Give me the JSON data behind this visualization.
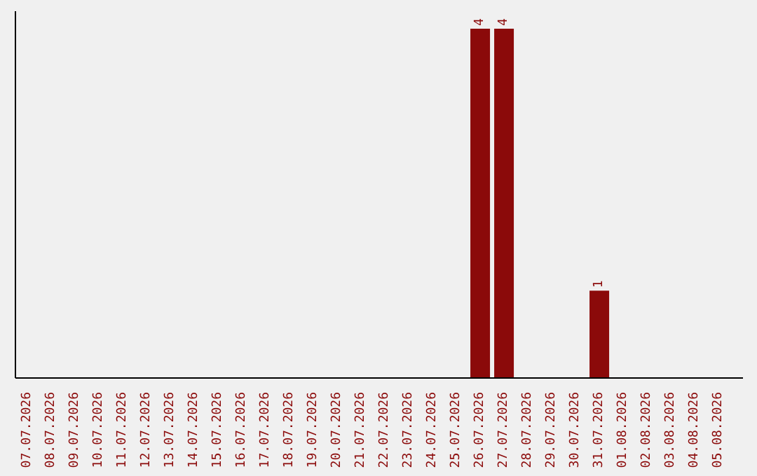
{
  "chart_data": {
    "type": "bar",
    "categories": [
      "07.07.2026",
      "08.07.2026",
      "09.07.2026",
      "10.07.2026",
      "11.07.2026",
      "12.07.2026",
      "13.07.2026",
      "14.07.2026",
      "15.07.2026",
      "16.07.2026",
      "17.07.2026",
      "18.07.2026",
      "19.07.2026",
      "20.07.2026",
      "21.07.2026",
      "22.07.2026",
      "23.07.2026",
      "24.07.2026",
      "25.07.2026",
      "26.07.2026",
      "27.07.2026",
      "28.07.2026",
      "29.07.2026",
      "30.07.2026",
      "31.07.2026",
      "01.08.2026",
      "02.08.2026",
      "03.08.2026",
      "04.08.2026",
      "05.08.2026"
    ],
    "values": [
      null,
      null,
      null,
      null,
      null,
      null,
      null,
      null,
      null,
      null,
      null,
      null,
      null,
      null,
      null,
      null,
      null,
      null,
      null,
      4,
      4,
      null,
      null,
      null,
      1,
      null,
      null,
      null,
      null,
      null
    ],
    "data_labels": true,
    "color": "#8b0a0a",
    "ylim": [
      0,
      4.2
    ],
    "tick_labels": "x",
    "grid": false,
    "legend": false
  }
}
